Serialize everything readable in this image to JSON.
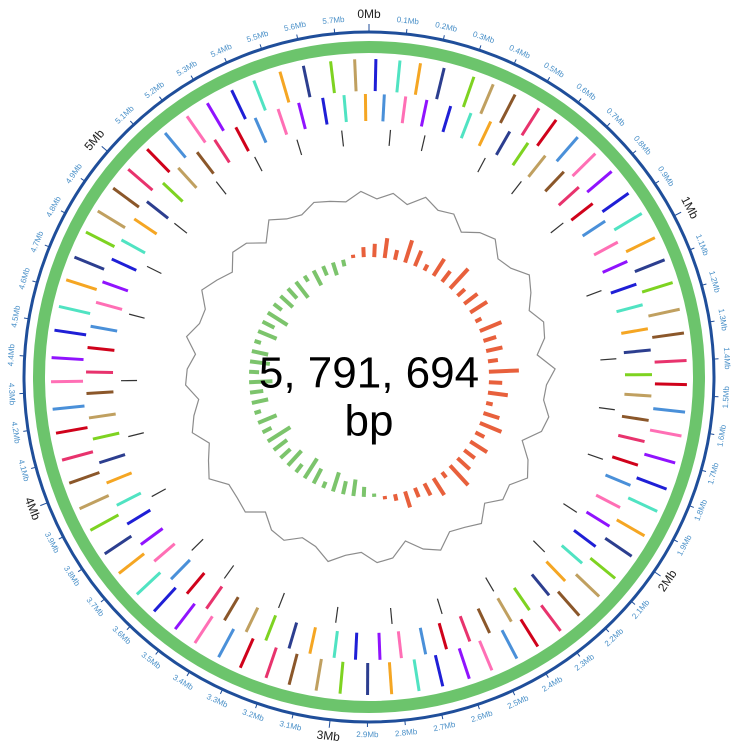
{
  "chart_data": {
    "type": "circular-genome",
    "title": "5, 791, 694",
    "subtitle": "bp",
    "xlim": [
      0,
      5.791694
    ],
    "xticks": [
      {
        "value": 0,
        "label": "0Mb"
      },
      {
        "value": 0.1,
        "label": "0.1Mb"
      },
      {
        "value": 0.2,
        "label": "0.2Mb"
      },
      {
        "value": 0.3,
        "label": "0.3Mb"
      },
      {
        "value": 0.4,
        "label": "0.4Mb"
      },
      {
        "value": 0.5,
        "label": "0.5Mb"
      },
      {
        "value": 0.6,
        "label": "0.6Mb"
      },
      {
        "value": 0.7,
        "label": "0.7Mb"
      },
      {
        "value": 0.8,
        "label": "0.8Mb"
      },
      {
        "value": 0.9,
        "label": "0.9Mb"
      },
      {
        "value": 1,
        "label": "1Mb"
      },
      {
        "value": 1.1,
        "label": "1.1Mb"
      },
      {
        "value": 1.2,
        "label": "1.2Mb"
      },
      {
        "value": 1.3,
        "label": "1.3Mb"
      },
      {
        "value": 1.4,
        "label": "1.4Mb"
      },
      {
        "value": 1.5,
        "label": "1.5Mb"
      },
      {
        "value": 1.6,
        "label": "1.6Mb"
      },
      {
        "value": 1.7,
        "label": "1.7Mb"
      },
      {
        "value": 1.8,
        "label": "1.8Mb"
      },
      {
        "value": 1.9,
        "label": "1.9Mb"
      },
      {
        "value": 2,
        "label": "2Mb"
      },
      {
        "value": 2.1,
        "label": "2.1Mb"
      },
      {
        "value": 2.2,
        "label": "2.2Mb"
      },
      {
        "value": 2.3,
        "label": "2.3Mb"
      },
      {
        "value": 2.4,
        "label": "2.4Mb"
      },
      {
        "value": 2.5,
        "label": "2.5Mb"
      },
      {
        "value": 2.6,
        "label": "2.6Mb"
      },
      {
        "value": 2.7,
        "label": "2.7Mb"
      },
      {
        "value": 2.8,
        "label": "2.8Mb"
      },
      {
        "value": 2.9,
        "label": "2.9Mb"
      },
      {
        "value": 3,
        "label": "3Mb"
      },
      {
        "value": 3.1,
        "label": "3.1Mb"
      },
      {
        "value": 3.2,
        "label": "3.2Mb"
      },
      {
        "value": 3.3,
        "label": "3.3Mb"
      },
      {
        "value": 3.4,
        "label": "3.4Mb"
      },
      {
        "value": 3.5,
        "label": "3.5Mb"
      },
      {
        "value": 3.6,
        "label": "3.6Mb"
      },
      {
        "value": 3.7,
        "label": "3.7Mb"
      },
      {
        "value": 3.8,
        "label": "3.8Mb"
      },
      {
        "value": 3.9,
        "label": "3.9Mb"
      },
      {
        "value": 4,
        "label": "4Mb"
      },
      {
        "value": 4.1,
        "label": "4.1Mb"
      },
      {
        "value": 4.2,
        "label": "4.2Mb"
      },
      {
        "value": 4.3,
        "label": "4.3Mb"
      },
      {
        "value": 4.4,
        "label": "4.4Mb"
      },
      {
        "value": 4.5,
        "label": "4.5Mb"
      },
      {
        "value": 4.6,
        "label": "4.6Mb"
      },
      {
        "value": 4.7,
        "label": "4.7Mb"
      },
      {
        "value": 4.8,
        "label": "4.8Mb"
      },
      {
        "value": 4.9,
        "label": "4.9Mb"
      },
      {
        "value": 5,
        "label": "5Mb"
      },
      {
        "value": 5.1,
        "label": "5.1Mb"
      },
      {
        "value": 5.2,
        "label": "5.2Mb"
      },
      {
        "value": 5.3,
        "label": "5.3Mb"
      },
      {
        "value": 5.4,
        "label": "5.4Mb"
      },
      {
        "value": 5.5,
        "label": "5.5Mb"
      },
      {
        "value": 5.6,
        "label": "5.6Mb"
      },
      {
        "value": 5.7,
        "label": "5.7Mb"
      }
    ],
    "axis_color": "#1f4e9a",
    "ring_color": "#6cc46c",
    "palette": [
      "#1f1fd6",
      "#e8336d",
      "#f5a623",
      "#4a90d9",
      "#7ed321",
      "#9013fe",
      "#8b572a",
      "#50e3c2",
      "#d0021b",
      "#2c3e8f",
      "#ff6fb5",
      "#c0a060"
    ],
    "tracks": [
      {
        "x": [
          0.02,
          0.09,
          0.15,
          0.22,
          0.31,
          0.37,
          0.44,
          0.52,
          0.58,
          0.66,
          0.73,
          0.8,
          0.88,
          0.95,
          1.03,
          1.1,
          1.17,
          1.25,
          1.32,
          1.4,
          1.47,
          1.55,
          1.62,
          1.7,
          1.78,
          1.85,
          1.93,
          2.0,
          2.08,
          2.15,
          2.23,
          2.3,
          2.38,
          2.45,
          2.53,
          2.6,
          2.68,
          2.75,
          2.83,
          2.9,
          2.98,
          3.05,
          3.13,
          3.2,
          3.28,
          3.35,
          3.43,
          3.5,
          3.58,
          3.65,
          3.73,
          3.8,
          3.88,
          3.95,
          4.03,
          4.1,
          4.18,
          4.25,
          4.33,
          4.4,
          4.48,
          4.55,
          4.63,
          4.7,
          4.78,
          4.85,
          4.93,
          5.0,
          5.08,
          5.15,
          5.23,
          5.3,
          5.38,
          5.45,
          5.53,
          5.6,
          5.68,
          5.75
        ]
      },
      {
        "x": [
          0.05,
          0.12,
          0.19,
          0.27,
          0.34,
          0.41,
          0.48,
          0.55,
          0.62,
          0.7,
          0.77,
          0.84,
          0.91,
          0.99,
          1.06,
          1.14,
          1.21,
          1.29,
          1.36,
          1.44,
          1.51,
          1.59,
          1.66,
          1.74,
          1.81,
          1.89,
          1.96,
          2.04,
          2.11,
          2.19,
          2.26,
          2.34,
          2.41,
          2.49,
          2.56,
          2.64,
          2.71,
          2.79,
          2.86,
          2.94,
          3.01,
          3.09,
          3.16,
          3.24,
          3.31,
          3.39,
          3.46,
          3.54,
          3.61,
          3.69,
          3.76,
          3.84,
          3.91,
          3.99,
          4.06,
          4.14,
          4.21,
          4.29,
          4.36,
          4.44,
          4.51,
          4.59,
          4.66,
          4.74,
          4.81,
          4.89,
          4.96,
          5.04,
          5.11,
          5.19,
          5.26,
          5.34,
          5.41,
          5.49,
          5.56,
          5.64,
          5.71,
          5.78
        ]
      },
      {
        "x": [
          0.08,
          0.21,
          0.45,
          0.61,
          0.83,
          1.12,
          1.38,
          1.57,
          1.76,
          1.98,
          2.17,
          2.41,
          2.62,
          2.81,
          3.02,
          3.24,
          3.47,
          3.63,
          3.88,
          4.12,
          4.33,
          4.58,
          4.77,
          4.96,
          5.18,
          5.35,
          5.52,
          5.69
        ]
      }
    ],
    "gc_content": [
      62.1,
      63.4,
      61.8,
      64.0,
      62.5,
      63.1,
      60.9,
      62.8,
      63.7,
      61.5,
      62.2,
      64.3,
      62.9,
      61.2,
      63.0,
      62.4,
      60.5,
      63.6,
      62.0,
      61.7,
      63.2,
      62.6,
      59.8,
      62.3,
      63.9,
      61.9,
      62.7,
      60.8,
      63.3,
      62.1,
      61.4,
      63.8,
      62.5,
      60.2,
      62.9,
      63.5,
      61.6,
      62.4,
      64.1,
      62.0,
      61.3,
      63.2,
      62.7,
      60.6,
      63.0,
      62.2,
      61.8,
      64.2,
      62.6,
      61.1,
      63.4,
      62.3,
      60.9,
      63.1,
      62.8,
      61.5,
      63.7,
      62.0,
      61.9,
      64.0,
      62.5,
      61.0,
      63.3,
      62.7,
      60.4,
      63.6,
      62.1,
      61.6,
      63.0,
      62.4,
      61.8,
      63.5
    ],
    "gc_content_ylim": [
      55,
      68
    ],
    "gc_content_color": "#8c8c8c",
    "gc_skew": [
      0.04,
      0.06,
      0.03,
      0.07,
      0.05,
      0.02,
      0.06,
      0.04,
      0.08,
      0.03,
      0.05,
      0.06,
      0.02,
      0.07,
      0.04,
      0.05,
      0.03,
      0.09,
      0.04,
      0.06,
      0.02,
      0.05,
      0.07,
      0.03,
      0.06,
      0.04,
      0.05,
      0.08,
      0.02,
      0.06,
      0.04,
      0.03,
      0.05,
      0.02,
      0.01,
      -0.01,
      -0.03,
      -0.05,
      -0.04,
      -0.06,
      -0.02,
      -0.05,
      -0.07,
      -0.03,
      -0.06,
      -0.04,
      -0.05,
      -0.08,
      -0.03,
      -0.06,
      -0.02,
      -0.05,
      -0.04,
      -0.07,
      -0.03,
      -0.06,
      -0.05,
      -0.02,
      -0.06,
      -0.04,
      -0.07,
      -0.03,
      -0.05,
      -0.04,
      -0.06,
      -0.02,
      -0.05,
      -0.03,
      -0.04,
      -0.02,
      0.01,
      0.03
    ],
    "gc_skew_ylim": [
      -0.12,
      0.12
    ],
    "gc_skew_colors": [
      "#e8603c",
      "#7cc46c"
    ]
  }
}
